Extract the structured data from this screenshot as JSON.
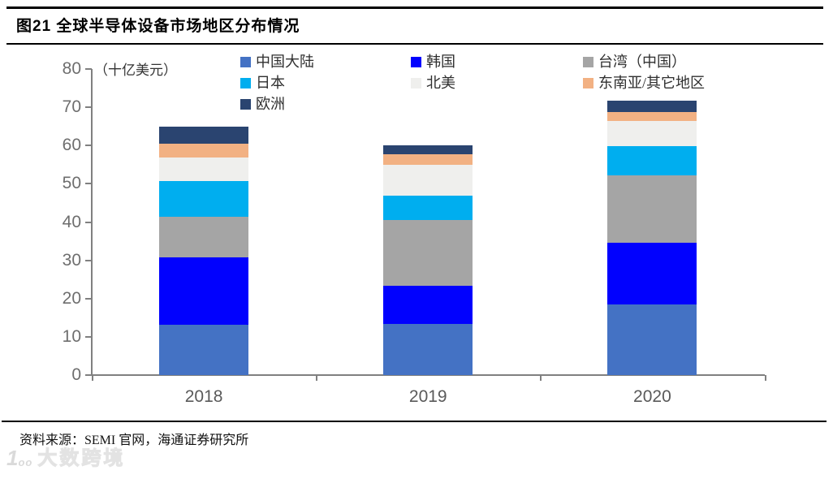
{
  "figure": {
    "title": "图21 全球半导体设备市场地区分布情况",
    "source_note": "资料来源：SEMI 官网，海通证券研究所",
    "watermark": {
      "logo_main": "1",
      "logo_sup": "oo",
      "text": "大数跨境"
    }
  },
  "chart_data": {
    "type": "bar",
    "stacked": true,
    "title": "全球半导体设备市场地区分布情况",
    "unit_label": "（十亿美元）",
    "categories": [
      "2018",
      "2019",
      "2020"
    ],
    "series": [
      {
        "name": "中国大陆",
        "color": "#4472C4",
        "values": [
          13.1,
          13.4,
          18.4
        ]
      },
      {
        "name": "韩国",
        "color": "#0101FE",
        "values": [
          17.7,
          10.0,
          16.1
        ]
      },
      {
        "name": "台湾（中国）",
        "color": "#A5A5A5",
        "values": [
          10.6,
          17.1,
          17.6
        ]
      },
      {
        "name": "日本",
        "color": "#00AEEF",
        "values": [
          9.4,
          6.3,
          7.7
        ]
      },
      {
        "name": "北美",
        "color": "#EFEFED",
        "values": [
          6.0,
          8.2,
          6.6
        ]
      },
      {
        "name": "东南亚/其它地区",
        "color": "#F2B183",
        "values": [
          3.7,
          2.7,
          2.3
        ]
      },
      {
        "name": "欧洲",
        "color": "#2A4470",
        "values": [
          4.4,
          2.3,
          3.0
        ]
      }
    ],
    "totals": [
      64.9,
      60.0,
      71.7
    ],
    "ylim": [
      0,
      80
    ],
    "y_ticks": [
      0,
      10,
      20,
      30,
      40,
      50,
      60,
      70,
      80
    ],
    "grid": false,
    "legend_position": "top",
    "axis_color": "#808080"
  }
}
